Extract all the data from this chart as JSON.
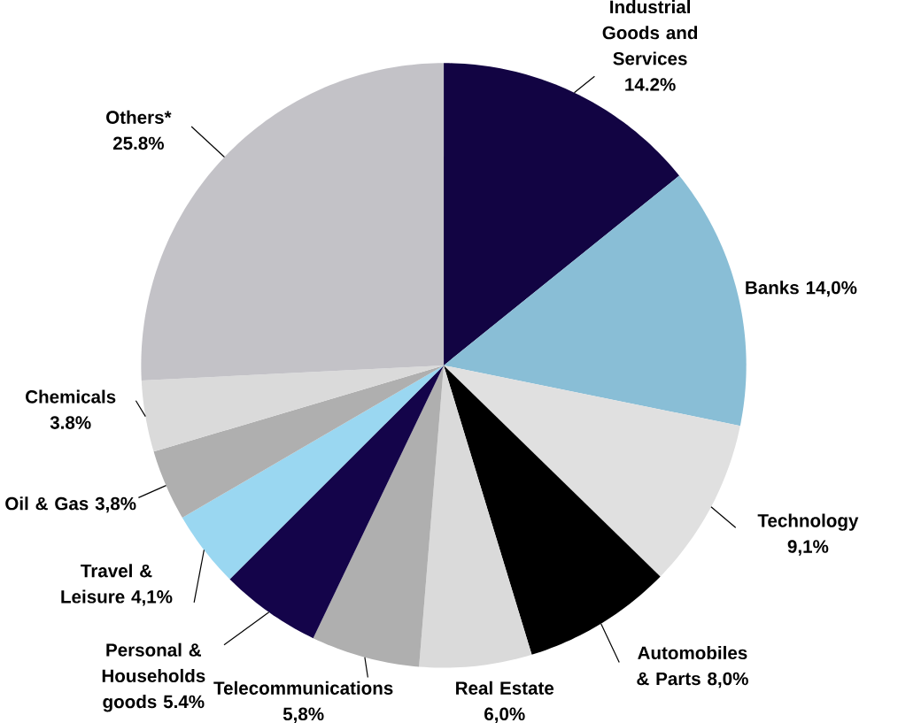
{
  "chart_data": {
    "type": "pie",
    "categories": [
      "Industrial Goods and Services",
      "Banks",
      "Technology",
      "Automobiles & Parts",
      "Real Estate",
      "Telecommunications",
      "Personal & Households goods",
      "Travel & Leisure",
      "Oil & Gas",
      "Chemicals",
      "Others*"
    ],
    "values": [
      14.2,
      14.0,
      9.1,
      8.0,
      6.0,
      5.8,
      5.4,
      4.1,
      3.8,
      3.8,
      25.8
    ],
    "value_labels": [
      "14.2%",
      "14,0%",
      "9,1%",
      "8,0%",
      "6,0%",
      "5,8%",
      "5.4%",
      "4,1%",
      "3,8%",
      "3.8%",
      "25.8%"
    ],
    "colors": [
      "#120443",
      "#89bed6",
      "#e0e0e0",
      "#000000",
      "#dadada",
      "#afafaf",
      "#14044a",
      "#9ad7f1",
      "#afafaf",
      "#dadada",
      "#c3c2c7"
    ]
  }
}
